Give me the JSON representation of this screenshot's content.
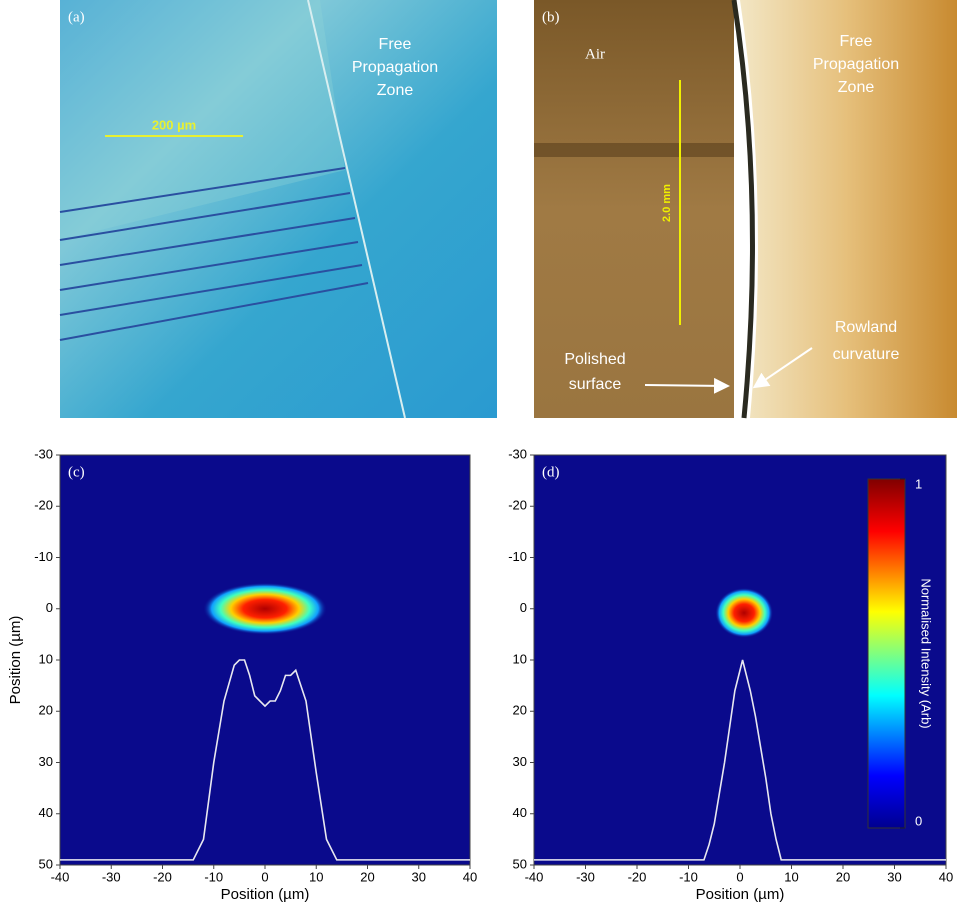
{
  "panels": [
    {
      "label": "(a)",
      "zone_label": [
        "Free",
        "Propagation",
        "Zone"
      ],
      "scale_bar": "200 µm"
    },
    {
      "label": "(b)",
      "side_label": "Air",
      "zone_label": [
        "Free",
        "Propagation",
        "Zone"
      ],
      "scale_bar": "2.0 mm",
      "annotations": [
        [
          "Polished",
          "surface"
        ],
        [
          "Rowland",
          "curvature"
        ]
      ]
    }
  ],
  "chart_data": [
    {
      "type": "heatmap",
      "panel_label": "(c)",
      "xlabel": "Position (µm)",
      "ylabel": "Position (µm)",
      "xlim": [
        -40,
        40
      ],
      "ylim": [
        -30,
        50
      ],
      "y_inverted": true,
      "xticks": [
        -40,
        -30,
        -20,
        -10,
        0,
        10,
        20,
        30,
        40
      ],
      "yticks": [
        -30,
        -20,
        -10,
        0,
        10,
        20,
        30,
        40,
        50
      ],
      "background": "#0a0a8c",
      "series": [
        {
          "color": "#e8e8f0",
          "x": [
            -40,
            -14,
            -12,
            -10,
            -8,
            -6,
            -5,
            -4,
            -3,
            -2,
            -1,
            0,
            1,
            2,
            3,
            4,
            5,
            6,
            8,
            10,
            12,
            14,
            40
          ],
          "values": [
            49,
            49,
            45,
            30,
            18,
            11,
            10,
            10,
            13,
            17,
            18,
            19,
            18,
            18,
            16,
            13,
            13,
            12,
            18,
            32,
            45,
            49,
            49
          ]
        }
      ]
    },
    {
      "type": "heatmap",
      "panel_label": "(d)",
      "xlabel": "Position (µm)",
      "xlim": [
        -40,
        40
      ],
      "ylim": [
        -30,
        50
      ],
      "y_inverted": true,
      "xticks": [
        -40,
        -30,
        -20,
        -10,
        0,
        10,
        20,
        30,
        40
      ],
      "yticks": [
        -30,
        -20,
        -10,
        0,
        10,
        20,
        30,
        40,
        50
      ],
      "background": "#0a0a8c",
      "colorbar": {
        "label": "Normalised Intensity (Arb)",
        "lim": [
          0,
          1
        ],
        "ticks": [
          0,
          1
        ]
      },
      "series": [
        {
          "color": "#e8e8f0",
          "x": [
            -40,
            -7,
            -6,
            -5,
            -4,
            -3,
            -2,
            -1,
            0,
            0.5,
            1,
            2,
            3,
            4,
            5,
            6,
            7,
            8,
            40
          ],
          "values": [
            49,
            49,
            46,
            42,
            36,
            30,
            23,
            16,
            12,
            10,
            12,
            16,
            21,
            27,
            33,
            40,
            45,
            49,
            49
          ]
        }
      ]
    }
  ]
}
